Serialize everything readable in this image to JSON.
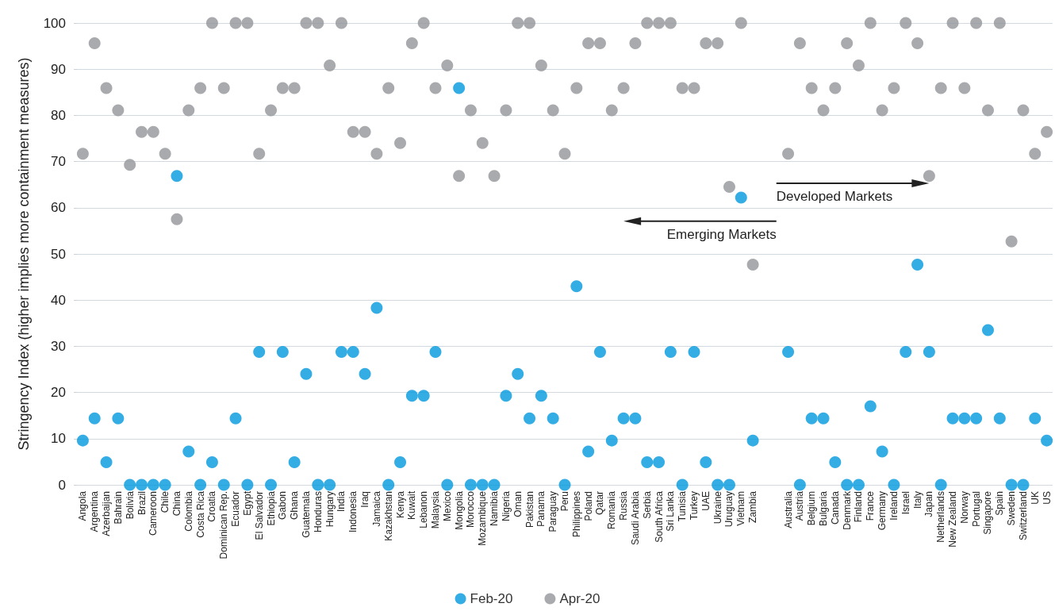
{
  "chart_data": {
    "type": "scatter",
    "ylabel": "Stringency Index (higher implies more containment measures)",
    "categories": [
      "Angola",
      "Argentina",
      "Azerbaijan",
      "Bahrain",
      "Bolivia",
      "Brazil",
      "Cameroon",
      "Chile",
      "China",
      "Colombia",
      "Costa Rica",
      "Croatia",
      "Dominican Rep.",
      "Ecuador",
      "Egypt",
      "El Salvador",
      "Ethiopia",
      "Gabon",
      "Ghana",
      "Guatemala",
      "Honduras",
      "Hungary",
      "India",
      "Indonesia",
      "Iraq",
      "Jamaica",
      "Kazakhstan",
      "Kenya",
      "Kuwait",
      "Lebanon",
      "Malaysia",
      "Mexico",
      "Mongolia",
      "Morocco",
      "Mozambique",
      "Namibia",
      "Nigeria",
      "Oman",
      "Pakistan",
      "Panama",
      "Paraguay",
      "Peru",
      "Philippines",
      "Poland",
      "Qatar",
      "Romania",
      "Russia",
      "Saudi Arabia",
      "Serbia",
      "South Africa",
      "Sri Lanka",
      "Tunisia",
      "Turkey",
      "UAE",
      "Ukraine",
      "Uruguay",
      "Vietnam",
      "Zambia",
      null,
      null,
      "Australia",
      "Austria",
      "Belgium",
      "Bulgaria",
      "Canada",
      "Denmark",
      "Finland",
      "France",
      "Germany",
      "Ireland",
      "Israel",
      "Italy",
      "Japan",
      "Netherlands",
      "New Zealand",
      "Norway",
      "Portugal",
      "Singapore",
      "Spain",
      "Sweden",
      "Switzerland",
      "UK",
      "US"
    ],
    "series": [
      {
        "name": "Feb-20",
        "color": "#0099dd",
        "values": [
          9.6,
          14.4,
          4.9,
          14.4,
          0,
          0,
          0,
          0,
          66.9,
          7.2,
          0,
          4.9,
          0,
          14.4,
          0,
          28.8,
          0,
          28.8,
          4.9,
          24.0,
          0,
          0,
          28.8,
          28.8,
          24.0,
          38.3,
          0,
          4.9,
          19.3,
          19.3,
          28.8,
          0,
          85.9,
          0,
          0,
          0,
          19.3,
          24.0,
          14.4,
          19.3,
          14.4,
          0,
          43.0,
          7.2,
          28.8,
          9.6,
          14.4,
          14.4,
          4.9,
          4.9,
          28.8,
          0,
          28.8,
          4.9,
          0,
          0,
          62.2,
          9.6,
          null,
          null,
          28.8,
          0,
          14.4,
          14.4,
          4.9,
          0,
          0,
          17.0,
          7.2,
          0,
          28.8,
          47.7,
          28.8,
          0,
          14.4,
          14.4,
          14.4,
          33.5,
          14.4,
          0,
          0,
          14.4,
          9.6
        ]
      },
      {
        "name": "Apr-20",
        "color": "#939598",
        "values": [
          71.7,
          95.6,
          85.9,
          81.1,
          69.3,
          76.4,
          76.4,
          71.7,
          57.5,
          81.1,
          85.9,
          100,
          85.9,
          100,
          100,
          71.7,
          81.1,
          85.9,
          85.9,
          100,
          100,
          90.8,
          100,
          76.4,
          76.4,
          71.7,
          85.9,
          74.0,
          95.6,
          100,
          85.9,
          90.8,
          66.9,
          81.1,
          74.0,
          66.9,
          81.1,
          100,
          100,
          90.8,
          81.1,
          71.7,
          85.9,
          95.6,
          95.6,
          81.1,
          85.9,
          95.6,
          100,
          100,
          100,
          85.9,
          85.9,
          95.6,
          95.6,
          64.5,
          100,
          47.7,
          null,
          null,
          71.7,
          95.6,
          85.9,
          81.1,
          85.9,
          95.6,
          90.8,
          100,
          81.1,
          85.9,
          100,
          95.6,
          66.9,
          85.9,
          100,
          85.9,
          100,
          81.1,
          100,
          52.7,
          81.1,
          71.7,
          76.4
        ]
      }
    ],
    "ylim": [
      0,
      100
    ],
    "yticks": [
      0,
      10,
      20,
      30,
      40,
      50,
      60,
      70,
      80,
      90,
      100
    ],
    "grid": "y",
    "legend": "bottom",
    "marker": "circle",
    "annotations": [
      "Emerging Markets",
      "Developed Markets"
    ]
  }
}
